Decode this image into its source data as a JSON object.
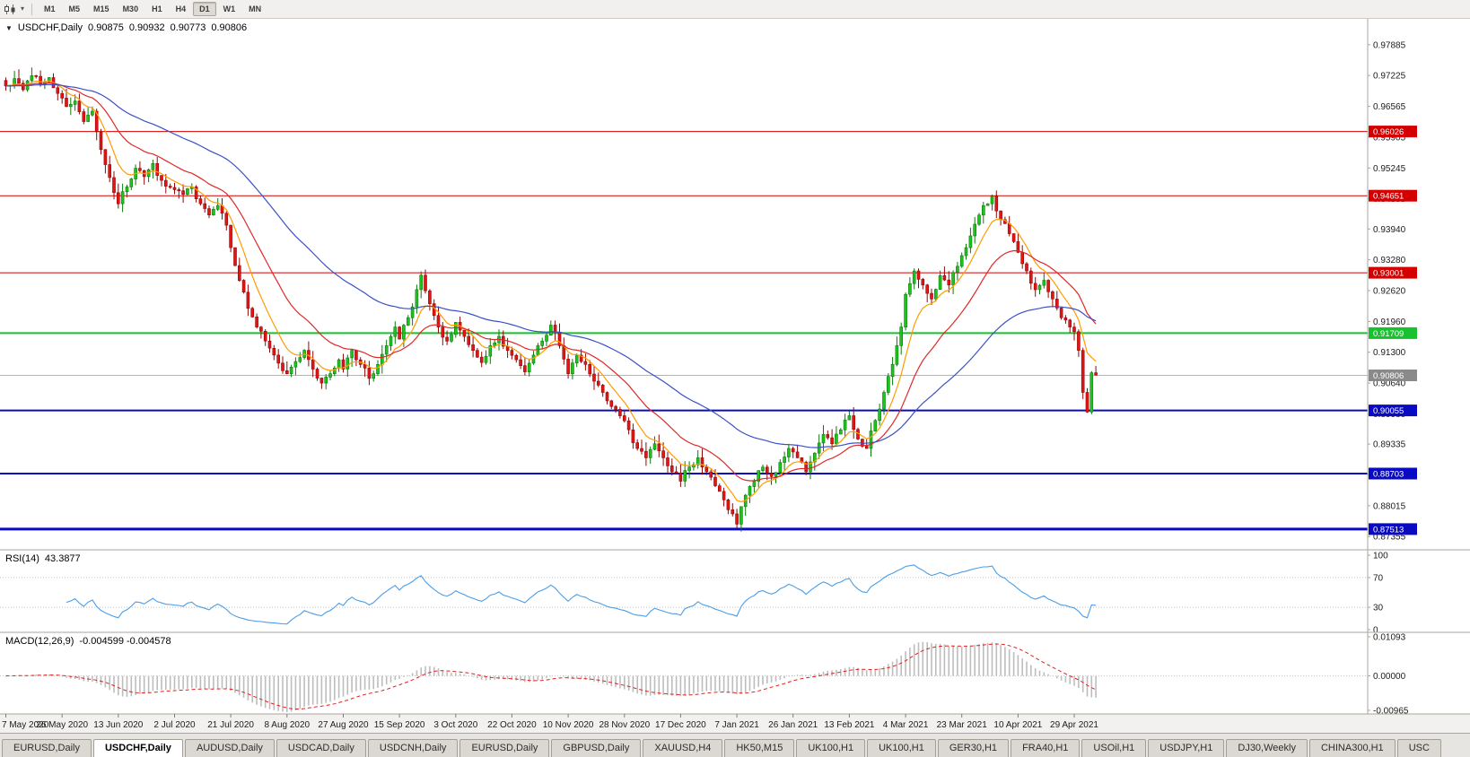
{
  "toolbar": {
    "timeframes": [
      {
        "label": "M1",
        "active": false
      },
      {
        "label": "M5",
        "active": false
      },
      {
        "label": "M15",
        "active": false
      },
      {
        "label": "M30",
        "active": false
      },
      {
        "label": "H1",
        "active": false
      },
      {
        "label": "H4",
        "active": false
      },
      {
        "label": "D1",
        "active": true
      },
      {
        "label": "W1",
        "active": false
      },
      {
        "label": "MN",
        "active": false
      }
    ]
  },
  "legend": {
    "dropdown_icon": "▼",
    "title": "USDCHF,Daily",
    "open": "0.90875",
    "high": "0.90932",
    "low": "0.90773",
    "close": "0.90806"
  },
  "chart_data": {
    "type": "candlestick",
    "symbol": "USDCHF",
    "period": "Daily",
    "num_candles": 253,
    "label_every_n_candles": 13,
    "price_range": {
      "min": 0.8707,
      "max": 0.984
    },
    "candle_colors": {
      "up": "#1ec41e",
      "up_border": "#0b7a0b",
      "down": "#e51414",
      "down_border": "#8f0808"
    },
    "close_keyframes": [
      [
        0,
        0.97
      ],
      [
        2,
        0.9716
      ],
      [
        4,
        0.9692
      ],
      [
        6,
        0.9722
      ],
      [
        8,
        0.9704
      ],
      [
        10,
        0.9718
      ],
      [
        12,
        0.9684
      ],
      [
        14,
        0.9656
      ],
      [
        16,
        0.9668
      ],
      [
        18,
        0.9624
      ],
      [
        20,
        0.9646
      ],
      [
        22,
        0.9564
      ],
      [
        24,
        0.9504
      ],
      [
        26,
        0.9448
      ],
      [
        28,
        0.9484
      ],
      [
        30,
        0.9524
      ],
      [
        32,
        0.9506
      ],
      [
        34,
        0.9534
      ],
      [
        36,
        0.9498
      ],
      [
        39,
        0.9478
      ],
      [
        41,
        0.9468
      ],
      [
        43,
        0.9484
      ],
      [
        45,
        0.9448
      ],
      [
        47,
        0.9424
      ],
      [
        49,
        0.9444
      ],
      [
        51,
        0.9402
      ],
      [
        52,
        0.9354
      ],
      [
        54,
        0.9284
      ],
      [
        56,
        0.9224
      ],
      [
        58,
        0.9184
      ],
      [
        60,
        0.9154
      ],
      [
        62,
        0.9124
      ],
      [
        65,
        0.9084
      ],
      [
        67,
        0.911
      ],
      [
        69,
        0.9134
      ],
      [
        71,
        0.9094
      ],
      [
        73,
        0.9064
      ],
      [
        75,
        0.9084
      ],
      [
        77,
        0.9114
      ],
      [
        78,
        0.9094
      ],
      [
        80,
        0.9134
      ],
      [
        82,
        0.9104
      ],
      [
        84,
        0.9074
      ],
      [
        86,
        0.9104
      ],
      [
        88,
        0.9144
      ],
      [
        90,
        0.9184
      ],
      [
        91,
        0.9158
      ],
      [
        93,
        0.9204
      ],
      [
        95,
        0.9264
      ],
      [
        96,
        0.9295
      ],
      [
        98,
        0.9234
      ],
      [
        100,
        0.9184
      ],
      [
        102,
        0.9154
      ],
      [
        104,
        0.9194
      ],
      [
        106,
        0.9164
      ],
      [
        108,
        0.9134
      ],
      [
        110,
        0.9108
      ],
      [
        112,
        0.9144
      ],
      [
        114,
        0.9164
      ],
      [
        116,
        0.9134
      ],
      [
        118,
        0.9114
      ],
      [
        120,
        0.9088
      ],
      [
        122,
        0.9124
      ],
      [
        124,
        0.9154
      ],
      [
        126,
        0.9188
      ],
      [
        128,
        0.9144
      ],
      [
        130,
        0.9084
      ],
      [
        132,
        0.9124
      ],
      [
        134,
        0.9104
      ],
      [
        136,
        0.9068
      ],
      [
        138,
        0.9044
      ],
      [
        140,
        0.9014
      ],
      [
        142,
        0.8994
      ],
      [
        144,
        0.8964
      ],
      [
        146,
        0.8924
      ],
      [
        148,
        0.8904
      ],
      [
        150,
        0.8934
      ],
      [
        152,
        0.8904
      ],
      [
        154,
        0.8874
      ],
      [
        156,
        0.8854
      ],
      [
        158,
        0.8884
      ],
      [
        160,
        0.8904
      ],
      [
        162,
        0.8874
      ],
      [
        164,
        0.8844
      ],
      [
        166,
        0.8814
      ],
      [
        168,
        0.8784
      ],
      [
        169,
        0.8762
      ],
      [
        171,
        0.8824
      ],
      [
        173,
        0.8854
      ],
      [
        175,
        0.8884
      ],
      [
        177,
        0.8864
      ],
      [
        179,
        0.8894
      ],
      [
        181,
        0.8924
      ],
      [
        183,
        0.8904
      ],
      [
        185,
        0.8874
      ],
      [
        187,
        0.8914
      ],
      [
        189,
        0.8954
      ],
      [
        191,
        0.8934
      ],
      [
        193,
        0.8964
      ],
      [
        195,
        0.8994
      ],
      [
        197,
        0.8944
      ],
      [
        199,
        0.8924
      ],
      [
        201,
        0.8984
      ],
      [
        203,
        0.9044
      ],
      [
        205,
        0.9104
      ],
      [
        207,
        0.9184
      ],
      [
        208,
        0.9254
      ],
      [
        210,
        0.9304
      ],
      [
        212,
        0.9274
      ],
      [
        214,
        0.9244
      ],
      [
        216,
        0.9294
      ],
      [
        218,
        0.9274
      ],
      [
        220,
        0.9314
      ],
      [
        222,
        0.9354
      ],
      [
        224,
        0.9404
      ],
      [
        226,
        0.9444
      ],
      [
        228,
        0.9464
      ],
      [
        230,
        0.9414
      ],
      [
        232,
        0.9384
      ],
      [
        234,
        0.9344
      ],
      [
        236,
        0.9304
      ],
      [
        238,
        0.9264
      ],
      [
        240,
        0.9284
      ],
      [
        242,
        0.9244
      ],
      [
        244,
        0.9204
      ],
      [
        246,
        0.9184
      ],
      [
        247,
        0.9174
      ],
      [
        248,
        0.9134
      ],
      [
        249,
        0.9044
      ],
      [
        250,
        0.9002
      ],
      [
        251,
        0.9086
      ],
      [
        252,
        0.9081
      ]
    ],
    "horizontal_lines": [
      {
        "price": 0.96026,
        "label": "0.96026",
        "color": "#d40000",
        "width": 1
      },
      {
        "price": 0.94651,
        "label": "0.94651",
        "color": "#d40000",
        "width": 1
      },
      {
        "price": 0.93001,
        "label": "0.93001",
        "color": "#d40000",
        "width": 1
      },
      {
        "price": 0.91709,
        "label": "0.91709",
        "color": "#17c22e",
        "width": 2
      },
      {
        "price": 0.90055,
        "label": "0.90055",
        "color": "#0a0ac2",
        "width": 2
      },
      {
        "price": 0.88703,
        "label": "0.88703",
        "color": "#0a0ac2",
        "width": 2
      },
      {
        "price": 0.87513,
        "label": "0.87513",
        "color": "#0a0ac2",
        "width": 3
      }
    ],
    "current_price": {
      "value": 0.90806,
      "label": "0.90806",
      "color": "#8a8a8a"
    },
    "price_axis_ticks": [
      "0.97885",
      "0.97225",
      "0.96565",
      "0.95905",
      "0.95245",
      "0.94585",
      "0.93940",
      "0.93280",
      "0.92620",
      "0.91960",
      "0.91300",
      "0.90640",
      "0.89980",
      "0.89335",
      "0.88675",
      "0.88015",
      "0.87355"
    ],
    "date_labels": [
      "7 May 2020",
      "26 May 2020",
      "13 Jun 2020",
      "2 Jul 2020",
      "21 Jul 2020",
      "8 Aug 2020",
      "27 Aug 2020",
      "15 Sep 2020",
      "3 Oct 2020",
      "22 Oct 2020",
      "10 Nov 2020",
      "28 Nov 2020",
      "17 Dec 2020",
      "7 Jan 2021",
      "26 Jan 2021",
      "13 Feb 2021",
      "4 Mar 2021",
      "23 Mar 2021",
      "10 Apr 2021",
      "29 Apr 2021"
    ],
    "moving_averages": [
      {
        "period": 8,
        "color": "#ff9c00"
      },
      {
        "period": 21,
        "color": "#e02828"
      },
      {
        "period": 55,
        "color": "#3b50c8"
      }
    ],
    "rsi": {
      "label": "RSI(14)",
      "current": "43.3877",
      "period": 14,
      "levels": [
        70,
        30
      ],
      "axis_ticks": [
        "100",
        "70",
        "30",
        "0"
      ],
      "color": "#4a9de8"
    },
    "macd": {
      "label": "MACD(12,26,9)",
      "current": "-0.004599 -0.004578",
      "fast": 12,
      "slow": 26,
      "signal": 9,
      "range": {
        "min": -0.00965,
        "max": 0.01093
      },
      "axis_ticks": [
        "0.01093",
        "0.00000",
        "-0.00965"
      ],
      "histogram_color": "#bdbdbd",
      "signal_color": "#e02020"
    }
  },
  "tabs": [
    {
      "label": "EURUSD,Daily",
      "active": false
    },
    {
      "label": "USDCHF,Daily",
      "active": true
    },
    {
      "label": "AUDUSD,Daily",
      "active": false
    },
    {
      "label": "USDCAD,Daily",
      "active": false
    },
    {
      "label": "USDCNH,Daily",
      "active": false
    },
    {
      "label": "EURUSD,Daily",
      "active": false
    },
    {
      "label": "GBPUSD,Daily",
      "active": false
    },
    {
      "label": "XAUUSD,H4",
      "active": false
    },
    {
      "label": "HK50,M15",
      "active": false
    },
    {
      "label": "UK100,H1",
      "active": false
    },
    {
      "label": "UK100,H1",
      "active": false
    },
    {
      "label": "GER30,H1",
      "active": false
    },
    {
      "label": "FRA40,H1",
      "active": false
    },
    {
      "label": "USOil,H1",
      "active": false
    },
    {
      "label": "USDJPY,H1",
      "active": false
    },
    {
      "label": "DJ30,Weekly",
      "active": false
    },
    {
      "label": "CHINA300,H1",
      "active": false
    },
    {
      "label": "USC",
      "active": false
    }
  ]
}
